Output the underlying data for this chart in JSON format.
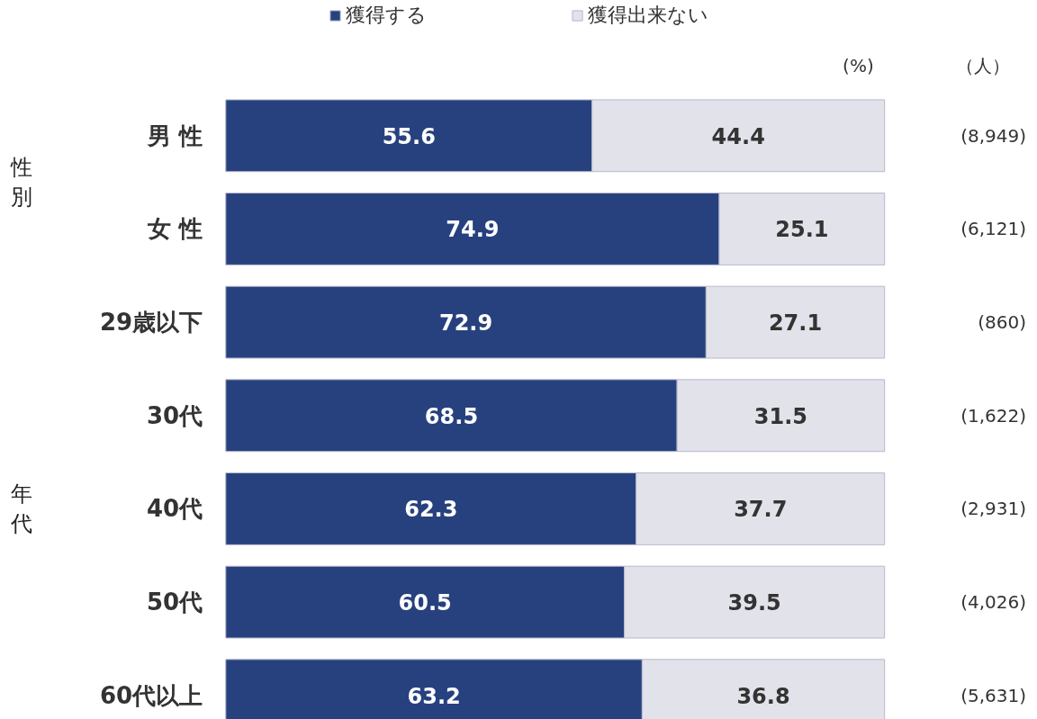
{
  "chart_data": {
    "type": "bar",
    "orientation": "horizontal",
    "stacked": true,
    "data_labels": true,
    "legend": "top",
    "grid": false,
    "tick_labels": "y",
    "categories": [
      "男 性",
      "女 性",
      "29歳以下",
      "30代",
      "40代",
      "50代",
      "60代以上"
    ],
    "series": [
      {
        "name": "獲得する",
        "color": "#27417f",
        "values": [
          55.6,
          74.9,
          72.9,
          68.5,
          62.3,
          60.5,
          63.2
        ]
      },
      {
        "name": "獲得出来ない",
        "color": "#e2e2ea",
        "values": [
          44.4,
          25.1,
          27.1,
          31.5,
          37.7,
          39.5,
          36.8
        ]
      }
    ],
    "annotations": [
      "性別",
      "年代",
      "(%)",
      "（人）",
      "(8,949)",
      "(6,121)",
      "(860)",
      "(1,622)",
      "(2,931)",
      "(4,026)",
      "(5,631)"
    ]
  }
}
